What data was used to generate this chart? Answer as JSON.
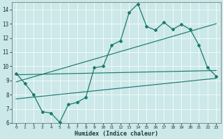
{
  "xlabel": "Humidex (Indice chaleur)",
  "background_color": "#cce8e8",
  "line_color": "#1a7a6e",
  "grid_color": "#b0d8d8",
  "xlim": [
    -0.5,
    23.5
  ],
  "ylim": [
    6,
    14.5
  ],
  "xticks": [
    0,
    1,
    2,
    3,
    4,
    5,
    6,
    7,
    8,
    9,
    10,
    11,
    12,
    13,
    14,
    15,
    16,
    17,
    18,
    19,
    20,
    21,
    22,
    23
  ],
  "yticks": [
    6,
    7,
    8,
    9,
    10,
    11,
    12,
    13,
    14
  ],
  "line1_x": [
    0,
    1,
    2,
    3,
    4,
    5,
    6,
    7,
    8,
    9,
    10,
    11,
    12,
    13,
    14,
    15,
    16,
    17,
    18,
    19,
    20,
    21,
    22,
    23
  ],
  "line1_y": [
    9.5,
    8.8,
    8.0,
    6.8,
    6.7,
    6.05,
    7.3,
    7.45,
    7.8,
    9.9,
    10.0,
    11.5,
    11.8,
    13.8,
    14.4,
    12.8,
    12.55,
    13.1,
    12.6,
    12.95,
    12.6,
    11.5,
    9.9,
    9.3
  ],
  "line2_x": [
    0,
    23
  ],
  "line2_y": [
    9.4,
    9.7
  ],
  "line3_x": [
    0,
    23
  ],
  "line3_y": [
    8.9,
    13.0
  ],
  "line4_x": [
    0,
    23
  ],
  "line4_y": [
    7.7,
    9.15
  ]
}
